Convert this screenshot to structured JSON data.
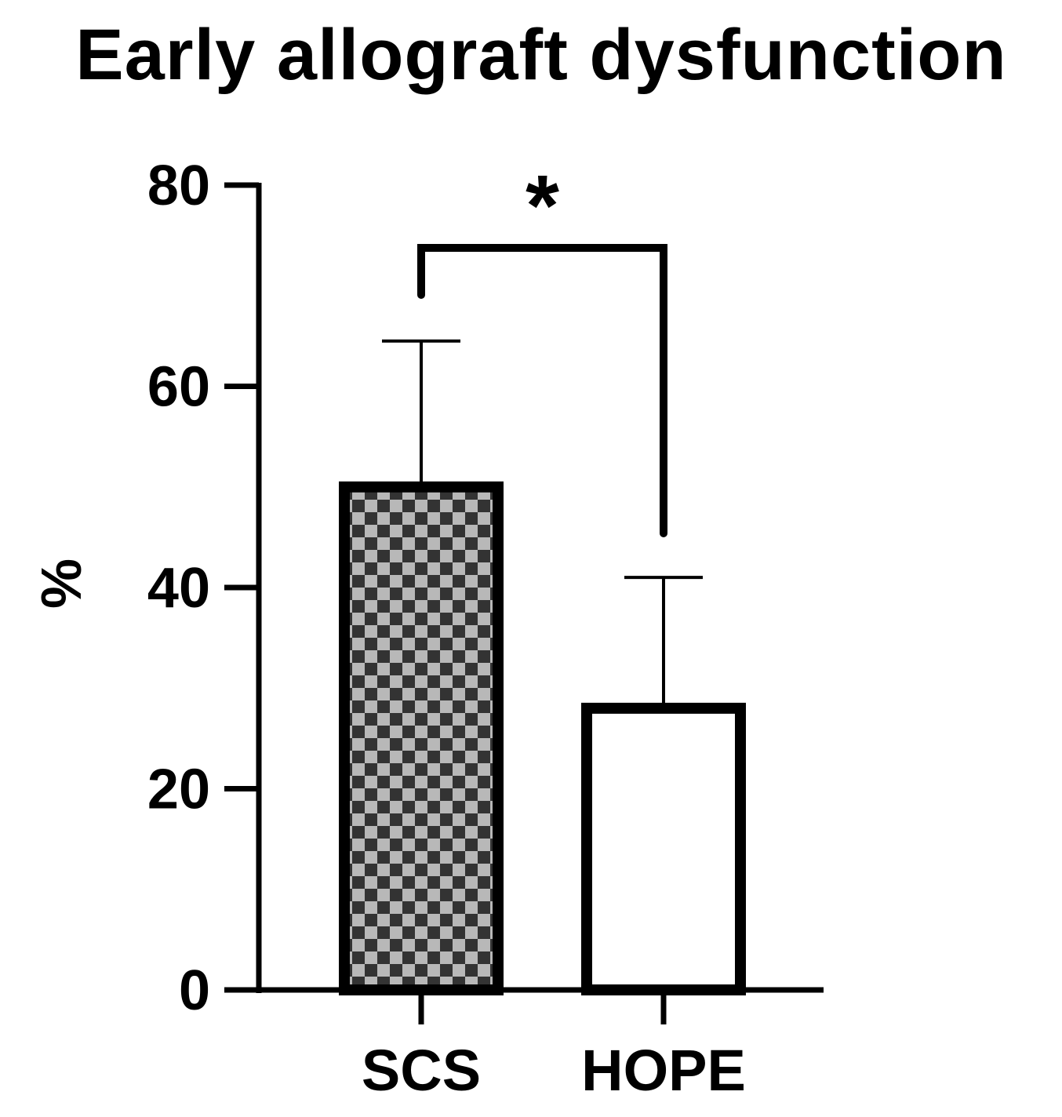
{
  "chart_data": {
    "type": "bar",
    "title": "Early allograft dysfunction",
    "xlabel": "",
    "ylabel": "%",
    "categories": [
      "SCS",
      "HOPE"
    ],
    "values": [
      50,
      28
    ],
    "error_upper": [
      64.5,
      41
    ],
    "ylim": [
      0,
      80
    ],
    "yticks": [
      0,
      20,
      40,
      60,
      80
    ],
    "yticklabels": [
      "0",
      "20",
      "40",
      "60",
      "80"
    ],
    "bar_fills": [
      "checkered",
      "white"
    ],
    "significance": {
      "pair": [
        "SCS",
        "HOPE"
      ],
      "label": "*"
    },
    "grid": false,
    "legend": "none"
  }
}
